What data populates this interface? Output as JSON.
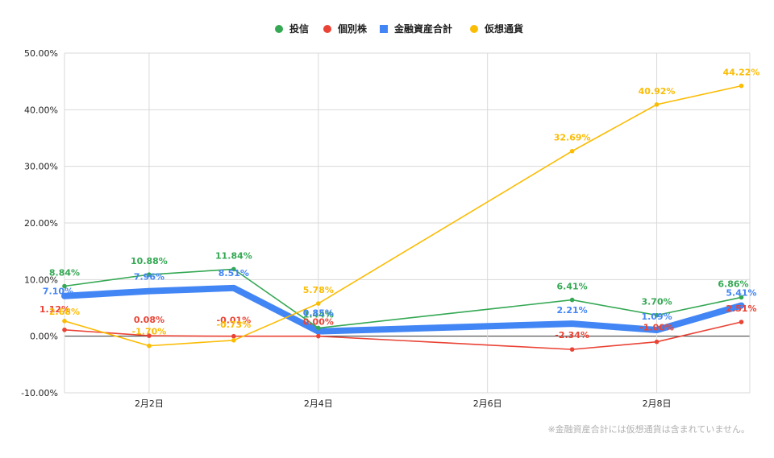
{
  "chart_data": {
    "type": "line",
    "title": "",
    "xlabel": "",
    "ylabel": "",
    "ylim": [
      -10,
      50
    ],
    "yticks": [
      -10,
      0,
      10,
      20,
      30,
      40,
      50
    ],
    "ytick_labels": [
      "-10.00%",
      "0.00%",
      "10.00%",
      "20.00%",
      "30.00%",
      "40.00%",
      "50.00%"
    ],
    "x_range": [
      1,
      9.1
    ],
    "xticks": [
      2,
      4,
      6,
      8
    ],
    "xtick_labels": [
      "2月2日",
      "2月4日",
      "2月6日",
      "2月8日"
    ],
    "grid": true,
    "legend_position": "top-center",
    "note": "※金融資産合計には仮想通貨は含まれていません。",
    "series": [
      {
        "name": "投信",
        "color": "#34a853",
        "marker": "circle",
        "x": [
          1,
          2,
          3,
          4,
          7,
          8,
          9
        ],
        "values": [
          8.84,
          10.88,
          11.84,
          1.44,
          6.41,
          3.7,
          6.86
        ],
        "labels": [
          "8.84%",
          "10.88%",
          "11.84%",
          "1.44%",
          "6.41%",
          "3.70%",
          "6.86%"
        ]
      },
      {
        "name": "個別株",
        "color": "#ea4335",
        "marker": "circle",
        "x": [
          1,
          2,
          3,
          4,
          7,
          8,
          9
        ],
        "values": [
          1.12,
          0.08,
          -0.01,
          0.0,
          -2.34,
          -1.0,
          2.51
        ],
        "labels": [
          "1.12%",
          "0.08%",
          "-0.01%",
          "0.00%",
          "-2.34%",
          "-1.00%",
          "2.51%"
        ]
      },
      {
        "name": "金融資産合計",
        "color": "#4285f4",
        "marker": "square",
        "x": [
          1,
          2,
          3,
          4,
          7,
          8,
          9
        ],
        "values": [
          7.1,
          7.96,
          8.51,
          0.85,
          2.21,
          1.09,
          5.41
        ],
        "labels": [
          "7.10%",
          "7.96%",
          "8.51%",
          "0.85%",
          "2.21%",
          "1.09%",
          "5.41%"
        ]
      },
      {
        "name": "仮想通貨",
        "color": "#fbbc04",
        "marker": "circle",
        "x": [
          1,
          2,
          3,
          4,
          7,
          8,
          9
        ],
        "values": [
          2.68,
          -1.7,
          -0.73,
          5.78,
          32.69,
          40.92,
          44.22
        ],
        "labels": [
          "2.68%",
          "-1.70%",
          "-0.73%",
          "5.78%",
          "32.69%",
          "40.92%",
          "44.22%"
        ]
      }
    ]
  }
}
